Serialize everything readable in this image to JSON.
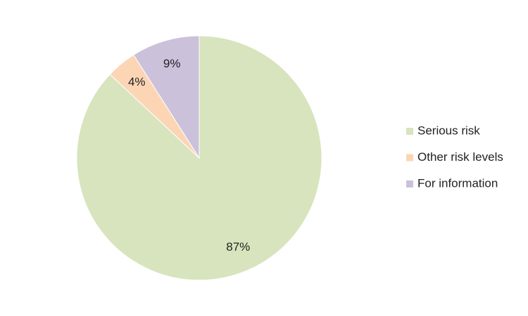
{
  "chart_data": {
    "type": "pie",
    "categories": [
      "Serious risk",
      "Other risk levels",
      "For information"
    ],
    "values": [
      87,
      4,
      9
    ],
    "value_labels": [
      "87%",
      "4%",
      "9%"
    ],
    "colors": [
      "#d7e4bd",
      "#fcd5b5",
      "#ccc1da"
    ],
    "legend": "right"
  }
}
